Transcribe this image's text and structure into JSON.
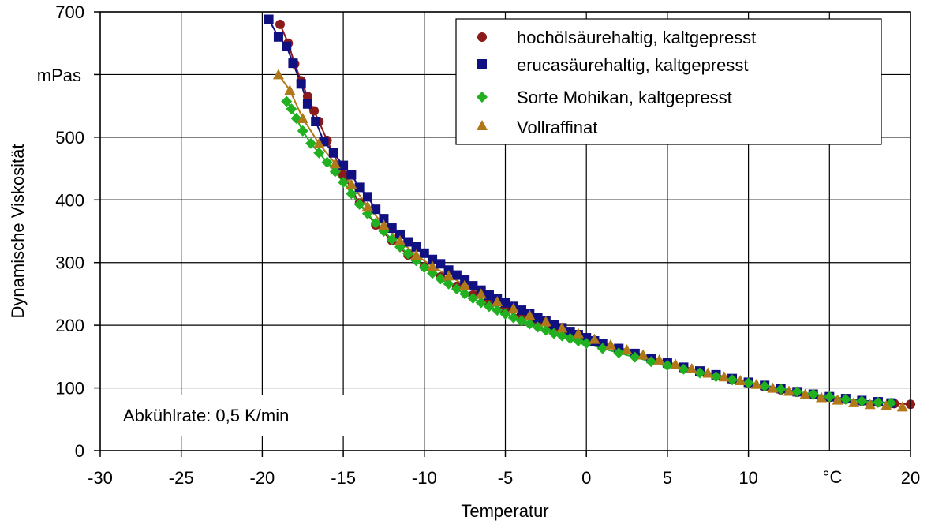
{
  "chart_data": {
    "type": "line",
    "xlabel": "Temperatur",
    "ylabel": "Dynamische Viskosität",
    "x_unit": "°C",
    "y_unit": "mPas",
    "annotation": "Abkühlrate: 0,5 K/min",
    "xlim": [
      -30,
      20
    ],
    "ylim": [
      0,
      700
    ],
    "x_ticks": [
      -30,
      -25,
      -20,
      -15,
      -10,
      -5,
      0,
      5,
      10,
      20
    ],
    "y_ticks": [
      0,
      100,
      200,
      300,
      400,
      500,
      600,
      700
    ],
    "grid": true,
    "legend_position": "top-right",
    "series": [
      {
        "name": "hochölsäurehaltig, kaltgepresst",
        "marker": "circle",
        "color": "#8b1a1a",
        "line_color": "#8b1a1a",
        "points": [
          [
            -18.9,
            680
          ],
          [
            -18.4,
            650
          ],
          [
            -18.0,
            617
          ],
          [
            -17.6,
            590
          ],
          [
            -17.2,
            565
          ],
          [
            -16.8,
            542
          ],
          [
            -16.5,
            525
          ],
          [
            -16.0,
            495
          ],
          [
            -15.0,
            440
          ],
          [
            -14.0,
            395
          ],
          [
            -13.0,
            360
          ],
          [
            -12.0,
            335
          ],
          [
            -11.0,
            312
          ],
          [
            -10.0,
            293
          ],
          [
            -9.0,
            277
          ],
          [
            -8.0,
            262
          ],
          [
            -7.0,
            248
          ],
          [
            -6.0,
            236
          ],
          [
            -5.0,
            224
          ],
          [
            -4.0,
            213
          ],
          [
            -3.0,
            203
          ],
          [
            -2.0,
            194
          ],
          [
            -1.0,
            185
          ],
          [
            0.0,
            176
          ],
          [
            1.0,
            168
          ],
          [
            2.0,
            160
          ],
          [
            3.0,
            152
          ],
          [
            4.0,
            145
          ],
          [
            5.0,
            138
          ],
          [
            6.0,
            131
          ],
          [
            7.0,
            125
          ],
          [
            8.0,
            119
          ],
          [
            9.0,
            113
          ],
          [
            10.0,
            107
          ],
          [
            11.0,
            102
          ],
          [
            12.0,
            97
          ],
          [
            13.0,
            93
          ],
          [
            14.0,
            89
          ],
          [
            15.0,
            85
          ],
          [
            16.0,
            82
          ],
          [
            17.0,
            79
          ],
          [
            18.0,
            77
          ],
          [
            19.0,
            75
          ],
          [
            20.0,
            74
          ]
        ]
      },
      {
        "name": "erucasäurehaltig, kaltgepresst",
        "marker": "square",
        "color": "#101080",
        "line_color": "#101080",
        "points": [
          [
            -19.6,
            688
          ],
          [
            -19.0,
            660
          ],
          [
            -18.5,
            645
          ],
          [
            -18.1,
            618
          ],
          [
            -17.6,
            585
          ],
          [
            -17.2,
            553
          ],
          [
            -16.7,
            525
          ],
          [
            -16.2,
            493
          ],
          [
            -15.6,
            475
          ],
          [
            -15.0,
            455
          ],
          [
            -14.5,
            440
          ],
          [
            -14.0,
            420
          ],
          [
            -13.5,
            405
          ],
          [
            -13.0,
            385
          ],
          [
            -12.5,
            370
          ],
          [
            -12.0,
            355
          ],
          [
            -11.5,
            345
          ],
          [
            -11.0,
            333
          ],
          [
            -10.5,
            325
          ],
          [
            -10.0,
            315
          ],
          [
            -9.5,
            305
          ],
          [
            -9.0,
            298
          ],
          [
            -8.5,
            288
          ],
          [
            -8.0,
            280
          ],
          [
            -7.5,
            272
          ],
          [
            -7.0,
            263
          ],
          [
            -6.5,
            256
          ],
          [
            -6.0,
            248
          ],
          [
            -5.5,
            242
          ],
          [
            -5.0,
            236
          ],
          [
            -4.5,
            230
          ],
          [
            -4.0,
            224
          ],
          [
            -3.5,
            218
          ],
          [
            -3.0,
            212
          ],
          [
            -2.5,
            207
          ],
          [
            -2.0,
            201
          ],
          [
            -1.5,
            196
          ],
          [
            -1.0,
            190
          ],
          [
            -0.5,
            185
          ],
          [
            0.0,
            180
          ],
          [
            0.5,
            175
          ],
          [
            1.0,
            171
          ],
          [
            2.0,
            163
          ],
          [
            3.0,
            155
          ],
          [
            4.0,
            147
          ],
          [
            5.0,
            140
          ],
          [
            6.0,
            133
          ],
          [
            7.0,
            127
          ],
          [
            8.0,
            121
          ],
          [
            9.0,
            115
          ],
          [
            10.0,
            109
          ],
          [
            11.0,
            104
          ],
          [
            12.0,
            99
          ],
          [
            13.0,
            94
          ],
          [
            14.0,
            90
          ],
          [
            15.0,
            86
          ],
          [
            16.0,
            83
          ],
          [
            17.0,
            80
          ],
          [
            18.0,
            78
          ],
          [
            18.8,
            76
          ]
        ]
      },
      {
        "name": "Sorte Mohikan, kaltgepresst",
        "marker": "diamond",
        "color": "#20b020",
        "line_color": "#20b020",
        "points": [
          [
            -18.5,
            557
          ],
          [
            -18.2,
            545
          ],
          [
            -17.9,
            530
          ],
          [
            -17.5,
            510
          ],
          [
            -17.0,
            490
          ],
          [
            -16.5,
            475
          ],
          [
            -16.0,
            460
          ],
          [
            -15.5,
            445
          ],
          [
            -15.0,
            428
          ],
          [
            -14.5,
            410
          ],
          [
            -14.0,
            393
          ],
          [
            -13.5,
            378
          ],
          [
            -13.0,
            363
          ],
          [
            -12.5,
            350
          ],
          [
            -12.0,
            337
          ],
          [
            -11.5,
            325
          ],
          [
            -11.0,
            314
          ],
          [
            -10.5,
            303
          ],
          [
            -10.0,
            292
          ],
          [
            -9.5,
            283
          ],
          [
            -9.0,
            274
          ],
          [
            -8.5,
            266
          ],
          [
            -8.0,
            258
          ],
          [
            -7.5,
            250
          ],
          [
            -7.0,
            243
          ],
          [
            -6.5,
            236
          ],
          [
            -6.0,
            230
          ],
          [
            -5.5,
            224
          ],
          [
            -5.0,
            218
          ],
          [
            -4.5,
            212
          ],
          [
            -4.0,
            207
          ],
          [
            -3.5,
            202
          ],
          [
            -3.0,
            197
          ],
          [
            -2.5,
            192
          ],
          [
            -2.0,
            187
          ],
          [
            -1.5,
            183
          ],
          [
            -1.0,
            179
          ],
          [
            -0.5,
            175
          ],
          [
            0.0,
            171
          ],
          [
            1.0,
            163
          ],
          [
            2.0,
            156
          ],
          [
            3.0,
            149
          ],
          [
            4.0,
            142
          ],
          [
            5.0,
            136
          ],
          [
            6.0,
            130
          ],
          [
            7.0,
            124
          ],
          [
            8.0,
            118
          ],
          [
            9.0,
            113
          ],
          [
            10.0,
            108
          ],
          [
            11.0,
            103
          ],
          [
            12.0,
            98
          ],
          [
            13.0,
            94
          ],
          [
            14.0,
            90
          ],
          [
            15.0,
            86
          ],
          [
            16.0,
            82
          ],
          [
            17.0,
            79
          ],
          [
            18.0,
            77
          ],
          [
            18.8,
            76
          ]
        ]
      },
      {
        "name": "Vollraffinat",
        "marker": "triangle",
        "color": "#b07818",
        "line_color": "#b07818",
        "points": [
          [
            -19.0,
            600
          ],
          [
            -18.3,
            575
          ],
          [
            -17.5,
            530
          ],
          [
            -16.5,
            490
          ],
          [
            -15.5,
            458
          ],
          [
            -14.5,
            425
          ],
          [
            -13.5,
            390
          ],
          [
            -12.5,
            360
          ],
          [
            -11.5,
            335
          ],
          [
            -10.5,
            312
          ],
          [
            -9.5,
            294
          ],
          [
            -8.5,
            279
          ],
          [
            -7.5,
            264
          ],
          [
            -6.5,
            250
          ],
          [
            -5.5,
            238
          ],
          [
            -4.5,
            227
          ],
          [
            -3.5,
            216
          ],
          [
            -2.5,
            206
          ],
          [
            -1.5,
            196
          ],
          [
            -0.5,
            187
          ],
          [
            0.5,
            178
          ],
          [
            1.5,
            169
          ],
          [
            2.5,
            161
          ],
          [
            3.5,
            153
          ],
          [
            4.5,
            145
          ],
          [
            5.5,
            138
          ],
          [
            6.5,
            131
          ],
          [
            7.5,
            124
          ],
          [
            8.5,
            118
          ],
          [
            9.5,
            112
          ],
          [
            10.5,
            106
          ],
          [
            11.5,
            100
          ],
          [
            12.5,
            95
          ],
          [
            13.5,
            90
          ],
          [
            14.5,
            85
          ],
          [
            15.5,
            81
          ],
          [
            16.5,
            77
          ],
          [
            17.5,
            74
          ],
          [
            18.5,
            72
          ],
          [
            19.5,
            70
          ]
        ]
      }
    ]
  }
}
